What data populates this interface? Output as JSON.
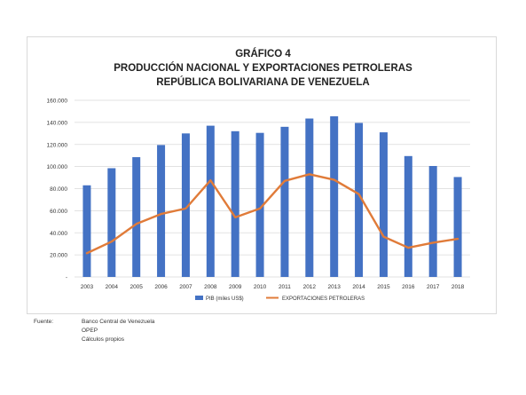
{
  "chart_data": {
    "type": "bar+line",
    "title_lines": [
      "GRÁFICO 4",
      "PRODUCCIÓN NACIONAL Y EXPORTACIONES PETROLERAS",
      "REPÚBLICA BOLIVARIANA DE VENEZUELA"
    ],
    "categories": [
      "2003",
      "2004",
      "2005",
      "2006",
      "2007",
      "2008",
      "2009",
      "2010",
      "2011",
      "2012",
      "2013",
      "2014",
      "2015",
      "2016",
      "2017",
      "2018"
    ],
    "series": [
      {
        "name": "PIB (miles US$)",
        "kind": "bar",
        "color": "#4472c4",
        "values": [
          83000,
          98500,
          108500,
          119500,
          130000,
          137000,
          132000,
          130500,
          136000,
          143500,
          145500,
          139500,
          131000,
          109500,
          100500,
          90500
        ]
      },
      {
        "name": "EXPORTACIONES PETROLERAS",
        "kind": "line",
        "color": "#e07b39",
        "values": [
          21500,
          32000,
          48000,
          57000,
          62000,
          87500,
          54000,
          62000,
          87000,
          93000,
          88000,
          75000,
          36500,
          26500,
          31000,
          34500
        ]
      }
    ],
    "yticks": [
      "-",
      "20.000",
      "40.000",
      "60.000",
      "80.000",
      "100.000",
      "120.000",
      "140.000",
      "160.000"
    ],
    "ylim": [
      0,
      160000
    ],
    "grid": true,
    "legend_position": "bottom"
  },
  "source": {
    "label": "Fuente:",
    "lines": [
      "Banco Central de Venezuela",
      "OPEP",
      "Cálculos propios"
    ]
  }
}
